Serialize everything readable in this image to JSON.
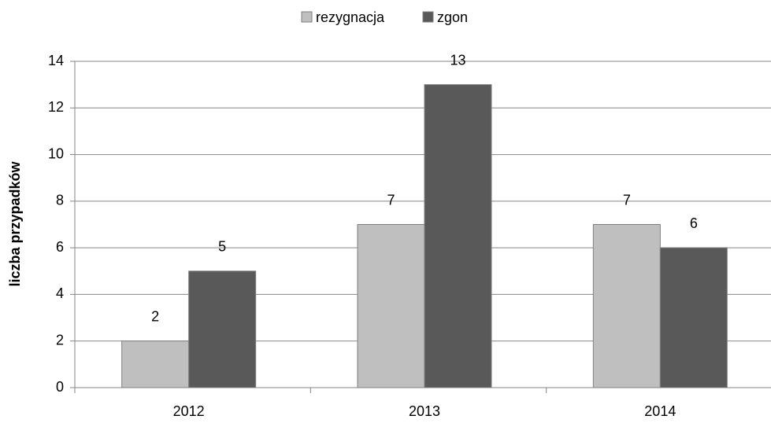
{
  "chart_data": {
    "type": "bar",
    "categories": [
      "2012",
      "2013",
      "2014"
    ],
    "series": [
      {
        "name": "rezygnacja",
        "color": "#bfbfbf",
        "values": [
          2,
          7,
          7
        ]
      },
      {
        "name": "zgon",
        "color": "#595959",
        "values": [
          5,
          13,
          6
        ]
      }
    ],
    "ylabel": "liczba przypadków",
    "ylim": [
      0,
      14
    ],
    "yticks": [
      0,
      2,
      4,
      6,
      8,
      10,
      12,
      14
    ],
    "grid": true,
    "legend": "top",
    "data_labels": true
  }
}
